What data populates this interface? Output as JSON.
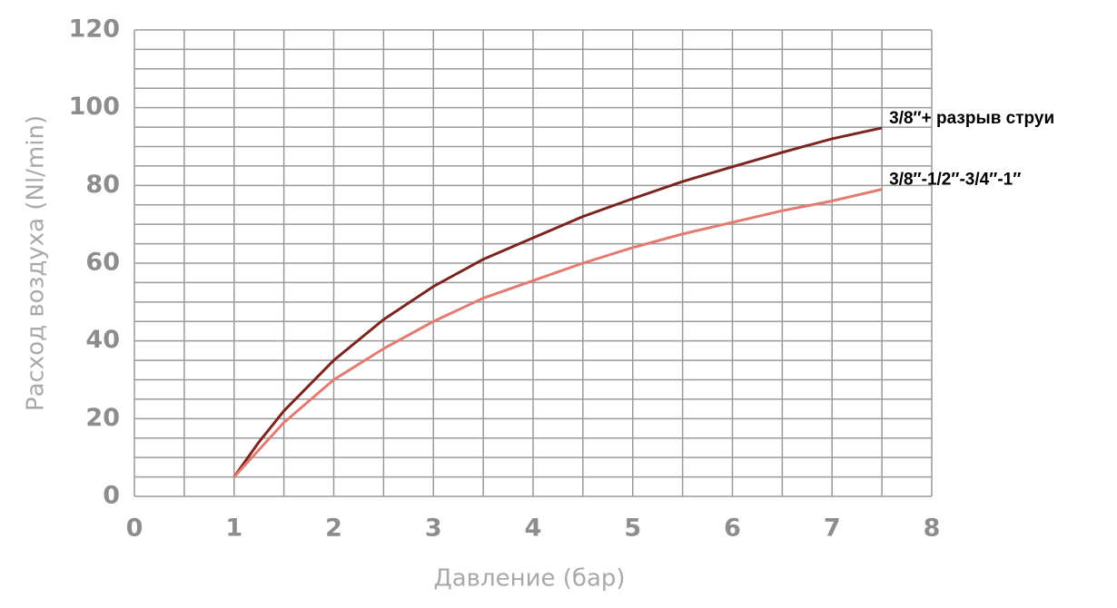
{
  "chart_data": {
    "type": "line",
    "x_label": "Давление (бар)",
    "y_label": "Расход воздуха (Nl/min)",
    "x": [
      1,
      1.25,
      1.5,
      2,
      2.5,
      3,
      3.5,
      4,
      4.5,
      5,
      5.5,
      6,
      6.5,
      7,
      7.5
    ],
    "series": [
      {
        "name": "3/8″+ разрыв струи",
        "color": "#7b2420",
        "values": [
          5,
          14,
          22,
          35,
          45.5,
          54,
          61,
          66.5,
          72,
          76.6,
          81,
          84.8,
          88.5,
          92,
          94.8
        ]
      },
      {
        "name": "3/8″-1/2″-3/4″-1″",
        "color": "#e47b72",
        "values": [
          5,
          12,
          19,
          30,
          38,
          45,
          51,
          55.5,
          60,
          64,
          67.5,
          70.5,
          73.5,
          76,
          79
        ]
      }
    ],
    "xlim": [
      0,
      8
    ],
    "xticks": [
      0,
      1,
      2,
      3,
      4,
      5,
      6,
      7,
      8
    ],
    "ylim": [
      0,
      120
    ],
    "yticks": [
      0,
      20,
      40,
      60,
      80,
      100,
      120
    ],
    "xgrid": [
      0,
      0.5,
      1,
      1.5,
      2,
      2.5,
      3,
      3.5,
      4,
      4.5,
      5,
      5.5,
      6,
      6.5,
      7,
      7.5,
      8
    ],
    "ygrid": [
      0,
      5,
      10,
      15,
      20,
      25,
      30,
      35,
      40,
      45,
      50,
      55,
      60,
      65,
      70,
      75,
      80,
      85,
      90,
      95,
      100,
      105,
      110,
      115,
      120
    ],
    "grid": true
  }
}
